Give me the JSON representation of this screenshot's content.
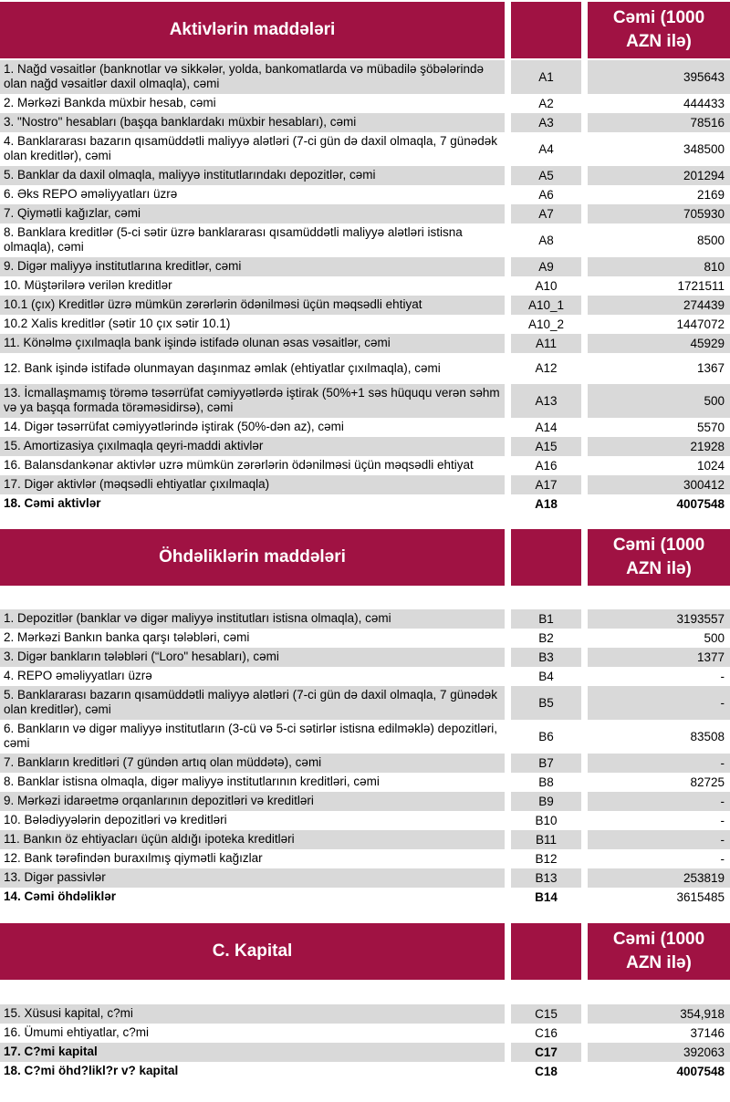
{
  "colors": {
    "header_bg": "#A01243",
    "header_text": "#FFFFFF",
    "row_shaded": "#D9D9D9",
    "body_text": "#000000"
  },
  "sections": [
    {
      "title": "Aktivlərin maddələri",
      "unit_header": "Cəmi (1000 AZN ilə)",
      "rows": [
        {
          "label": "1. Nağd vəsaitlər (banknotlar və sikkələr, yolda, bankomatlarda və mübadilə şöbələrində olan nağd vəsaitlər daxil olmaqla), cəmi",
          "code": "A1",
          "value": "395643",
          "shaded": true
        },
        {
          "label": "2. Mərkəzi Bankda müxbir hesab, cəmi",
          "code": "A2",
          "value": "444433",
          "shaded": false
        },
        {
          "label": "3. \"Nostro\" hesabları (başqa banklardakı müxbir hesabları), cəmi",
          "code": "A3",
          "value": "78516",
          "shaded": true
        },
        {
          "label": "4. Banklararası bazarın qısamüddətli maliyyə alətləri (7-ci gün də daxil olmaqla, 7 günədək olan kreditlər), cəmi",
          "code": "A4",
          "value": "348500",
          "shaded": false
        },
        {
          "label": "5. Banklar da daxil olmaqla, maliyyə institutlarındakı depozitlər, cəmi",
          "code": "A5",
          "value": "201294",
          "shaded": true
        },
        {
          "label": "6. Əks REPO əməliyyatları üzrə",
          "code": "A6",
          "value": "2169",
          "shaded": false
        },
        {
          "label": "7. Qiymətli kağızlar, cəmi",
          "code": "A7",
          "value": "705930",
          "shaded": true
        },
        {
          "label": "8. Banklara kreditlər (5-ci sətir üzrə banklararası qısamüddətli maliyyə alətləri istisna olmaqla), cəmi",
          "code": "A8",
          "value": "8500",
          "shaded": false
        },
        {
          "label": "9. Digər maliyyə institutlarına kreditlər, cəmi",
          "code": "A9",
          "value": "810",
          "shaded": true
        },
        {
          "label": "10. Müştərilərə verilən kreditlər",
          "code": "A10",
          "value": "1721511",
          "shaded": false
        },
        {
          "label": "10.1 (çıx) Kreditlər üzrə mümkün zərərlərin ödənilməsi üçün məqsədli ehtiyat",
          "code": "A10_1",
          "value": "274439",
          "shaded": true
        },
        {
          "label": "10.2 Xalis kreditlər (sətir 10 çıx sətir 10.1)",
          "code": "A10_2",
          "value": "1447072",
          "shaded": false
        },
        {
          "label": "11. Könəlmə çıxılmaqla bank işində istifadə olunan əsas vəsaitlər, cəmi",
          "code": "A11",
          "value": "45929",
          "shaded": true
        },
        {
          "label": "12. Bank işində istifadə olunmayan daşınmaz əmlak (ehtiyatlar çıxılmaqla), cəmi",
          "code": "A12",
          "value": "1367",
          "shaded": false,
          "tall": true
        },
        {
          "label": "13. İcmallaşmamış törəmə təsərrüfat cəmiyyətlərdə iştirak (50%+1 səs hüququ verən səhm və ya başqa formada törəməsidirsə), cəmi",
          "code": "A13",
          "value": "500",
          "shaded": true
        },
        {
          "label": "14. Digər təsərrüfat cəmiyyətlərində iştirak (50%-dən az), cəmi",
          "code": "A14",
          "value": "5570",
          "shaded": false
        },
        {
          "label": "15. Amortizasiya çıxılmaqla qeyri-maddi aktivlər",
          "code": "A15",
          "value": "21928",
          "shaded": true
        },
        {
          "label": "16. Balansdankənar aktivlər uzrə mümkün zərərlərin ödənilməsi üçün məqsədli ehtiyat",
          "code": "A16",
          "value": "1024",
          "shaded": false
        },
        {
          "label": "17. Digər aktivlər (məqsədli ehtiyatlar çıxılmaqla)",
          "code": "A17",
          "value": "300412",
          "shaded": true
        },
        {
          "label": "18. Cəmi aktivlər",
          "code": "A18",
          "value": "4007548",
          "shaded": false,
          "bold": true,
          "value_bold": true
        }
      ]
    },
    {
      "title": "Öhdəliklərin maddələri",
      "unit_header": "Cəmi (1000 AZN ilə)",
      "rows": [
        {
          "label": "1. Depozitlər (banklar və digər maliyyə institutları istisna olmaqla), cəmi",
          "code": "B1",
          "value": "3193557",
          "shaded": true
        },
        {
          "label": "2. Mərkəzi Bankın banka qarşı tələbləri, cəmi",
          "code": "B2",
          "value": "500",
          "shaded": false
        },
        {
          "label": "3. Digər bankların tələbləri (“Loro\" hesabları), cəmi",
          "code": "B3",
          "value": "1377",
          "shaded": true
        },
        {
          "label": "4. REPO əməliyyatları üzrə",
          "code": "B4",
          "value": "-",
          "shaded": false
        },
        {
          "label": "5. Banklararası bazarın qısamüddətli maliyyə alətləri (7-ci gün də daxil olmaqla, 7 günədək olan kreditlər), cəmi",
          "code": "B5",
          "value": "-",
          "shaded": true
        },
        {
          "label": "6. Bankların və digər maliyyə institutların (3-cü və 5-ci sətirlər istisna edilməklə) depozitləri, cəmi",
          "code": "B6",
          "value": "83508",
          "shaded": false
        },
        {
          "label": "7. Bankların kreditləri (7 gündən artıq olan müddətə), cəmi",
          "code": "B7",
          "value": "-",
          "shaded": true
        },
        {
          "label": "8. Banklar istisna olmaqla, digər maliyyə institutlarının kreditləri, cəmi",
          "code": "B8",
          "value": "82725",
          "shaded": false
        },
        {
          "label": "9. Mərkəzi idarəetmə orqanlarının depozitləri və kreditləri",
          "code": "B9",
          "value": "-",
          "shaded": true
        },
        {
          "label": "10. Bələdiyyələrin depozitləri və kreditləri",
          "code": "B10",
          "value": "-",
          "shaded": false
        },
        {
          "label": "11. Bankın öz ehtiyacları üçün aldığı ipoteka kreditləri",
          "code": "B11",
          "value": "-",
          "shaded": true
        },
        {
          "label": "12. Bank tərəfindən buraxılmış qiymətli kağızlar",
          "code": "B12",
          "value": "-",
          "shaded": false
        },
        {
          "label": "13. Digər passivlər",
          "code": "B13",
          "value": "253819",
          "shaded": true
        },
        {
          "label": "14. Cəmi öhdəliklər",
          "code": "B14",
          "value": "3615485",
          "shaded": false,
          "bold": true
        }
      ]
    },
    {
      "title": "C. Kapital",
      "unit_header": "Cəmi (1000 AZN ilə)",
      "rows": [
        {
          "label": "15. Xüsusi kapital, c?mi",
          "code": "C15",
          "value": "354,918",
          "shaded": true
        },
        {
          "label": "16. Ümumi ehtiyatlar, c?mi",
          "code": "C16",
          "value": "37146",
          "shaded": false
        },
        {
          "label": "17. C?mi kapital",
          "code": "C17",
          "value": "392063",
          "shaded": true,
          "bold": true
        },
        {
          "label": "18. C?mi öhd?likl?r v? kapital",
          "code": "C18",
          "value": "4007548",
          "shaded": false,
          "bold": true,
          "value_bold": true
        }
      ]
    }
  ]
}
